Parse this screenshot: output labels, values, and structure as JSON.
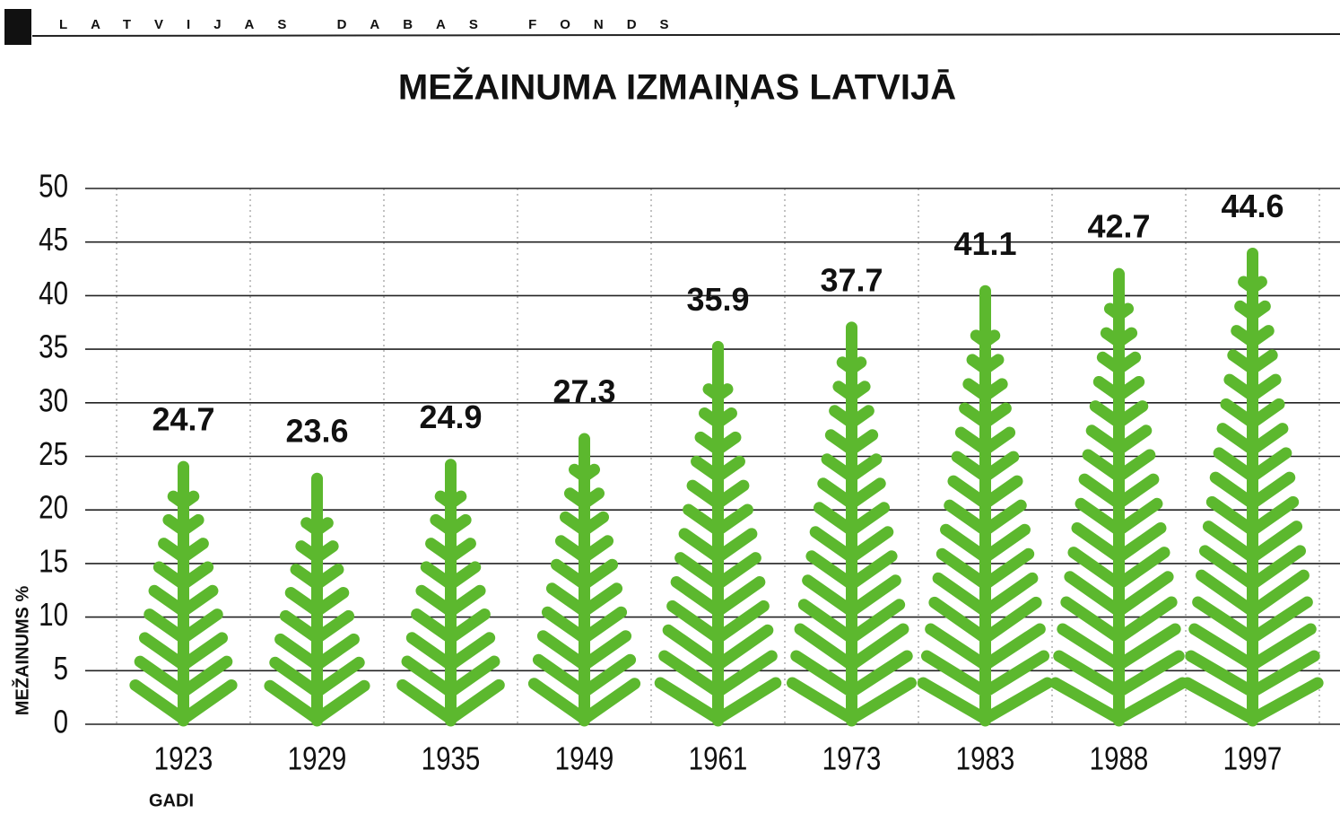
{
  "header": "LATVIJAS DABAS FONDS",
  "chart_data": {
    "type": "pictogram-bar",
    "title": "MEŽAINUMA IZMAIŅAS LATVIJĀ",
    "x_label": "GADI",
    "y_label": "MEŽAINUMS %",
    "categories": [
      "1923",
      "1929",
      "1935",
      "1949",
      "1961",
      "1973",
      "1983",
      "1988",
      "1997"
    ],
    "values": [
      24.7,
      23.6,
      24.9,
      27.3,
      35.9,
      37.7,
      41.1,
      42.7,
      44.6
    ],
    "color": "#5cb82e",
    "ylim": [
      0,
      50
    ],
    "yticks": [
      0,
      5,
      10,
      15,
      20,
      25,
      30,
      35,
      40,
      45,
      50
    ],
    "grid": true
  }
}
